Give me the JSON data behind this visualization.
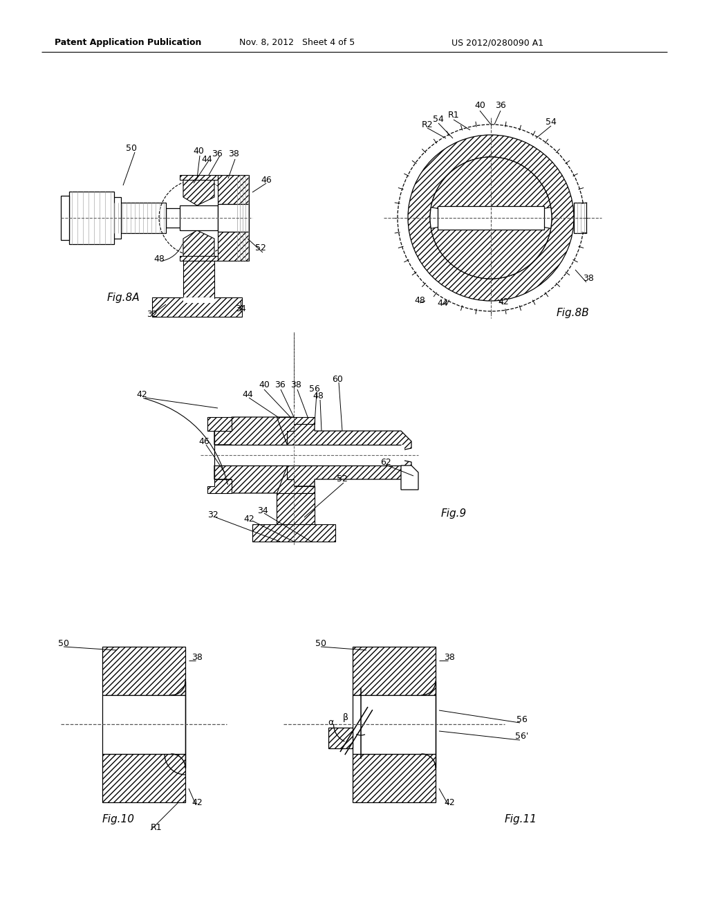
{
  "bg_color": "#ffffff",
  "header_left": "Patent Application Publication",
  "header_mid": "Nov. 8, 2012   Sheet 4 of 5",
  "header_right": "US 2012/0280090 A1",
  "fig8A_label": "Fig.8A",
  "fig8B_label": "Fig.8B",
  "fig9_label": "Fig.9",
  "fig10_label": "Fig.10",
  "fig11_label": "Fig.11"
}
